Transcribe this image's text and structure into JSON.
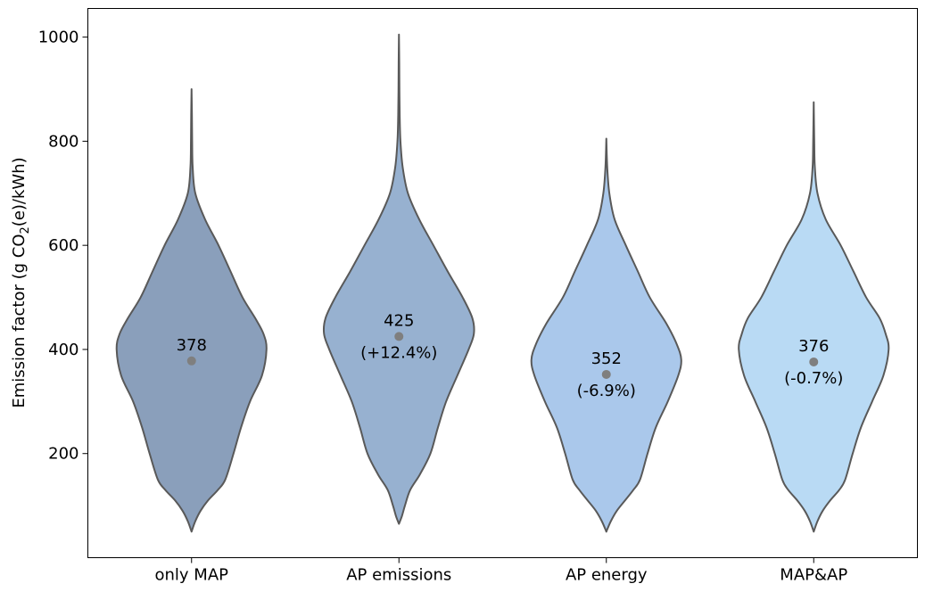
{
  "chart_data": {
    "type": "violin",
    "ylabel": "Emission factor (g CO",
    "ylabel_subscript": "2",
    "ylabel_suffix": "(e)/kWh)",
    "categories": [
      "only MAP",
      "AP emissions",
      "AP energy",
      "MAP&AP"
    ],
    "yticks": [
      200,
      400,
      600,
      800,
      1000
    ],
    "ylim": [
      0,
      1055
    ],
    "grid": false,
    "series": [
      {
        "category": "only MAP",
        "median": 378,
        "label": "378",
        "change": "",
        "color": "#8a9fbb",
        "range": [
          50,
          900
        ],
        "profile": [
          [
            50,
            0
          ],
          [
            70,
            0.05
          ],
          [
            90,
            0.12
          ],
          [
            110,
            0.22
          ],
          [
            130,
            0.35
          ],
          [
            150,
            0.45
          ],
          [
            200,
            0.56
          ],
          [
            250,
            0.66
          ],
          [
            300,
            0.78
          ],
          [
            350,
            0.94
          ],
          [
            400,
            1.0
          ],
          [
            430,
            0.96
          ],
          [
            460,
            0.85
          ],
          [
            500,
            0.68
          ],
          [
            550,
            0.52
          ],
          [
            600,
            0.36
          ],
          [
            650,
            0.18
          ],
          [
            700,
            0.05
          ],
          [
            750,
            0.015
          ],
          [
            800,
            0.008
          ],
          [
            850,
            0.005
          ],
          [
            900,
            0
          ]
        ]
      },
      {
        "category": "AP emissions",
        "median": 425,
        "label": "425",
        "change": "(+12.4%)",
        "color": "#97b1d0",
        "range": [
          65,
          1005
        ],
        "profile": [
          [
            65,
            0
          ],
          [
            80,
            0.04
          ],
          [
            100,
            0.08
          ],
          [
            130,
            0.15
          ],
          [
            160,
            0.28
          ],
          [
            200,
            0.42
          ],
          [
            250,
            0.52
          ],
          [
            300,
            0.63
          ],
          [
            350,
            0.78
          ],
          [
            400,
            0.93
          ],
          [
            430,
            1.0
          ],
          [
            460,
            0.98
          ],
          [
            500,
            0.85
          ],
          [
            550,
            0.65
          ],
          [
            600,
            0.46
          ],
          [
            650,
            0.27
          ],
          [
            700,
            0.12
          ],
          [
            750,
            0.05
          ],
          [
            800,
            0.02
          ],
          [
            850,
            0.01
          ],
          [
            900,
            0.006
          ],
          [
            950,
            0.004
          ],
          [
            1005,
            0
          ]
        ]
      },
      {
        "category": "AP energy",
        "median": 352,
        "label": "352",
        "change": "(-6.9%)",
        "color": "#aac8eb",
        "range": [
          50,
          805
        ],
        "profile": [
          [
            50,
            0
          ],
          [
            70,
            0.06
          ],
          [
            90,
            0.14
          ],
          [
            110,
            0.25
          ],
          [
            130,
            0.36
          ],
          [
            150,
            0.45
          ],
          [
            200,
            0.55
          ],
          [
            250,
            0.66
          ],
          [
            300,
            0.82
          ],
          [
            350,
            0.96
          ],
          [
            380,
            1.0
          ],
          [
            410,
            0.94
          ],
          [
            450,
            0.8
          ],
          [
            500,
            0.58
          ],
          [
            550,
            0.42
          ],
          [
            600,
            0.26
          ],
          [
            650,
            0.11
          ],
          [
            700,
            0.04
          ],
          [
            750,
            0.012
          ],
          [
            805,
            0
          ]
        ]
      },
      {
        "category": "MAP&AP",
        "median": 376,
        "label": "376",
        "change": "(-0.7%)",
        "color": "#b9daf4",
        "range": [
          50,
          875
        ],
        "profile": [
          [
            50,
            0
          ],
          [
            70,
            0.05
          ],
          [
            90,
            0.12
          ],
          [
            110,
            0.22
          ],
          [
            130,
            0.34
          ],
          [
            150,
            0.42
          ],
          [
            200,
            0.52
          ],
          [
            250,
            0.63
          ],
          [
            300,
            0.78
          ],
          [
            350,
            0.93
          ],
          [
            400,
            1.0
          ],
          [
            430,
            0.96
          ],
          [
            460,
            0.88
          ],
          [
            500,
            0.7
          ],
          [
            550,
            0.53
          ],
          [
            600,
            0.36
          ],
          [
            650,
            0.16
          ],
          [
            700,
            0.05
          ],
          [
            750,
            0.015
          ],
          [
            800,
            0.007
          ],
          [
            875,
            0
          ]
        ]
      }
    ],
    "median_marker_color": "#7f7f7f",
    "outline_color": "#595959"
  }
}
